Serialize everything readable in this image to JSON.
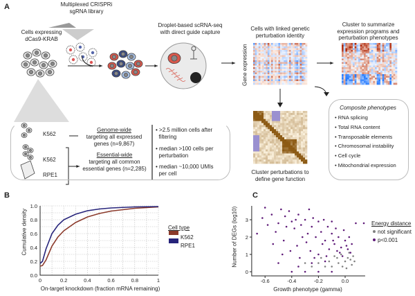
{
  "panels": {
    "a": "A",
    "b": "B",
    "c": "C"
  },
  "panel_a": {
    "library": "Multiplexed CRISPRi\nsgRNA library",
    "cells": "Cells expressing\ndCas9-KRAB",
    "droplet": "Droplet-based scRNA-seq\nwith direct guide capture",
    "linked": "Cells with linked genetic\nperturbation identity",
    "gene_expression": "Gene expression",
    "cluster_summarize": "Cluster to summarize\nexpression programs and\nperturbation phenotypes",
    "cluster_perturb": "Cluster perturbations to\ndefine gene function",
    "screens": {
      "k562_1": "K562",
      "k562_2": "K562",
      "rpe1": "RPE1",
      "genome_title": "Genome-wide",
      "genome_desc": "targeting all expressed\ngenes (n=9,867)",
      "essential_title": "Essential-wide",
      "essential_desc": "targeting all common\nessential genes (n=2,285)",
      "stats": [
        "• >2.5 million cells after\n  filtering",
        "• median >100 cells per\n  perturbation",
        "• median ~10,000 UMIs\n  per cell"
      ]
    },
    "composite": {
      "title": "Composite phenotypes",
      "items": [
        "• RNA splicing",
        "• Total RNA content",
        "• Transposable elements",
        "• Chromosomal instability",
        "• Cell cycle",
        "• Mitochondrial expression"
      ]
    }
  },
  "chart_data": [
    {
      "type": "line",
      "xlabel": "On-target knockdown (fraction mRNA remaining)",
      "ylabel": "Cumulative density",
      "xlim": [
        0,
        1
      ],
      "ylim": [
        0,
        1
      ],
      "grid": true,
      "legend_title": "Cell type",
      "legend": "right",
      "xticks": [
        "0",
        "0.2",
        "0.4",
        "0.6",
        "0.8",
        "1"
      ],
      "yticks": [
        "0.0",
        "0.2",
        "0.4",
        "0.6",
        "0.8",
        "1.0"
      ],
      "x": [
        0,
        0.02,
        0.05,
        0.1,
        0.15,
        0.2,
        0.3,
        0.4,
        0.5,
        0.6,
        0.8,
        1
      ],
      "series": [
        {
          "name": "K562",
          "color": "#8b3a2b",
          "values": [
            0.13,
            0.14,
            0.22,
            0.42,
            0.55,
            0.64,
            0.76,
            0.84,
            0.89,
            0.925,
            0.965,
            0.985
          ]
        },
        {
          "name": "RPE1",
          "color": "#26237a",
          "values": [
            0.17,
            0.2,
            0.38,
            0.6,
            0.72,
            0.8,
            0.88,
            0.93,
            0.955,
            0.97,
            0.985,
            0.99
          ]
        }
      ]
    },
    {
      "type": "scatter",
      "xlabel": "Growth phenotype (gamma)",
      "ylabel": "Number of DEGs (log10)",
      "xlim": [
        -0.7,
        0.15
      ],
      "ylim": [
        0,
        3.7
      ],
      "legend_title": "Energy distance",
      "legend": "right",
      "xticks": [
        "-0.6",
        "-0.4",
        "-0.2",
        "0.0"
      ],
      "yticks": [
        "0",
        "1",
        "2",
        "3"
      ],
      "series": [
        {
          "name": "not significant",
          "color": "#808080",
          "points": [
            [
              -0.1,
              0.3
            ],
            [
              -0.05,
              0.5
            ],
            [
              0,
              0.6
            ],
            [
              0.02,
              0.8
            ],
            [
              -0.08,
              0.9
            ],
            [
              0.05,
              0.4
            ],
            [
              -0.15,
              0.3
            ],
            [
              -0.2,
              0.5
            ],
            [
              -0.03,
              1.0
            ],
            [
              0.04,
              0.7
            ],
            [
              -0.12,
              0.6
            ],
            [
              0.01,
              0.2
            ],
            [
              -0.25,
              0.3
            ],
            [
              0.06,
              0.9
            ],
            [
              -0.06,
              0.8
            ],
            [
              0.03,
              1.1
            ],
            [
              -0.3,
              0.5
            ],
            [
              -0.02,
              0.3
            ],
            [
              0.07,
              0.6
            ],
            [
              -0.18,
              0.8
            ]
          ]
        },
        {
          "name": "p<0.001",
          "color": "#5e1a78",
          "points": [
            [
              -0.6,
              3.7
            ],
            [
              -0.62,
              3.1
            ],
            [
              -0.55,
              3.3
            ],
            [
              -0.5,
              2.8
            ],
            [
              -0.48,
              3.6
            ],
            [
              -0.45,
              3.2
            ],
            [
              -0.4,
              2.9
            ],
            [
              -0.42,
              3.5
            ],
            [
              -0.38,
              2.5
            ],
            [
              -0.35,
              3.3
            ],
            [
              -0.33,
              2.7
            ],
            [
              -0.3,
              3.0
            ],
            [
              -0.28,
              2.2
            ],
            [
              -0.27,
              3.6
            ],
            [
              -0.25,
              2.6
            ],
            [
              -0.22,
              2.0
            ],
            [
              -0.2,
              2.9
            ],
            [
              -0.18,
              2.3
            ],
            [
              -0.15,
              1.8
            ],
            [
              -0.13,
              2.6
            ],
            [
              -0.1,
              2.2
            ],
            [
              -0.08,
              1.6
            ],
            [
              -0.05,
              2.0
            ],
            [
              -0.03,
              1.4
            ],
            [
              0,
              1.8
            ],
            [
              0.02,
              1.3
            ],
            [
              0.05,
              1.6
            ],
            [
              0.08,
              2.8
            ],
            [
              0.14,
              2.8
            ],
            [
              -0.66,
              2.2
            ],
            [
              -0.52,
              2.3
            ],
            [
              -0.46,
              1.8
            ],
            [
              -0.44,
              2.6
            ],
            [
              -0.36,
              1.5
            ],
            [
              -0.32,
              2.0
            ],
            [
              -0.26,
              1.2
            ],
            [
              -0.24,
              3.1
            ],
            [
              -0.2,
              1.0
            ],
            [
              -0.16,
              3.0
            ],
            [
              -0.12,
              1.3
            ],
            [
              -0.1,
              2.9
            ],
            [
              -0.07,
              2.5
            ],
            [
              -0.04,
              1.1
            ],
            [
              -0.01,
              2.4
            ],
            [
              0.03,
              2.0
            ],
            [
              -0.58,
              2.7
            ],
            [
              -0.54,
              1.6
            ],
            [
              -0.47,
              1.0
            ],
            [
              -0.41,
              1.2
            ],
            [
              -0.37,
              3.0
            ],
            [
              -0.34,
              0.8
            ],
            [
              -0.29,
              1.7
            ],
            [
              -0.23,
              0.8
            ],
            [
              -0.17,
              1.6
            ],
            [
              -0.14,
              0.9
            ],
            [
              -0.09,
              1.8
            ],
            [
              -0.06,
              1.2
            ],
            [
              -0.02,
              0.9
            ],
            [
              0.01,
              1.5
            ],
            [
              0.04,
              1.1
            ],
            [
              -0.4,
              0
            ],
            [
              -0.3,
              0
            ],
            [
              -0.2,
              0
            ],
            [
              -0.1,
              0
            ],
            [
              -0.5,
              0.5
            ],
            [
              -0.35,
              0.3
            ],
            [
              -0.25,
              0.5
            ],
            [
              -0.15,
              0.6
            ]
          ]
        }
      ]
    }
  ]
}
